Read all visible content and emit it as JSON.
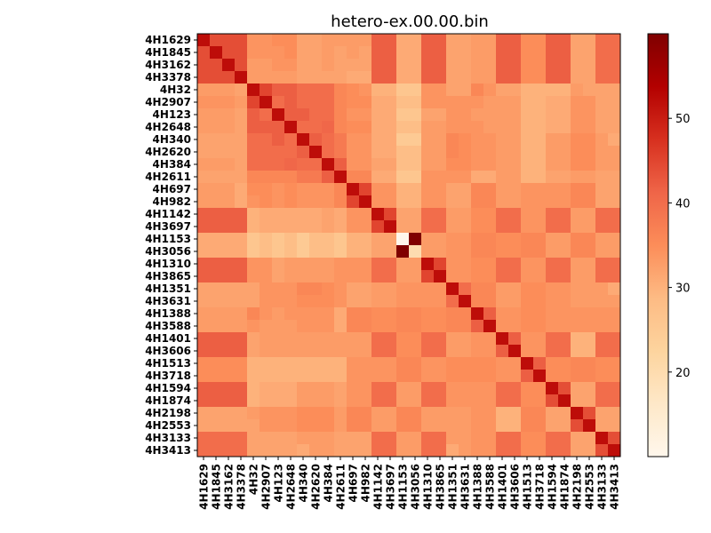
{
  "chart_data": {
    "type": "heatmap",
    "title": "hetero-ex.00.00.bin",
    "xlabel": "",
    "ylabel": "",
    "labels": [
      "4H1629",
      "4H1845",
      "4H3162",
      "4H3378",
      "4H32",
      "4H2907",
      "4H123",
      "4H2648",
      "4H340",
      "4H2620",
      "4H384",
      "4H2611",
      "4H697",
      "4H982",
      "4H1142",
      "4H3697",
      "4H1153",
      "4H3056",
      "4H1310",
      "4H3865",
      "4H1351",
      "4H3631",
      "4H1388",
      "4H3588",
      "4H1401",
      "4H3606",
      "4H1513",
      "4H3718",
      "4H1594",
      "4H1874",
      "4H2198",
      "4H2553",
      "4H3133",
      "4H3413"
    ],
    "colormap": "OrRd",
    "colormap_stops": [
      "#fff7ec",
      "#fee8c8",
      "#fdd49e",
      "#fdbb84",
      "#fc8d59",
      "#ef6548",
      "#d7301f",
      "#b30000",
      "#7f0000"
    ],
    "vmin": 10,
    "vmax": 60,
    "colorbar_ticks": [
      20,
      30,
      40,
      50
    ],
    "grid": false,
    "matrix": [
      [
        52,
        44,
        44,
        44,
        34,
        34,
        35,
        35,
        32,
        32,
        33,
        33,
        33,
        33,
        42,
        42,
        31,
        31,
        42,
        42,
        32,
        32,
        33,
        33,
        42,
        42,
        35,
        35,
        42,
        42,
        32,
        32,
        40,
        40
      ],
      [
        44,
        52,
        44,
        44,
        34,
        34,
        34,
        35,
        32,
        32,
        33,
        32,
        33,
        32,
        42,
        42,
        31,
        31,
        42,
        42,
        32,
        32,
        33,
        33,
        42,
        42,
        35,
        35,
        42,
        42,
        32,
        32,
        40,
        40
      ],
      [
        44,
        44,
        52,
        44,
        33,
        33,
        34,
        34,
        32,
        32,
        33,
        32,
        32,
        32,
        42,
        42,
        31,
        31,
        42,
        42,
        32,
        32,
        33,
        33,
        42,
        42,
        35,
        35,
        42,
        42,
        32,
        32,
        40,
        40
      ],
      [
        44,
        44,
        44,
        52,
        33,
        33,
        33,
        33,
        32,
        32,
        32,
        32,
        31,
        31,
        42,
        42,
        31,
        31,
        42,
        42,
        32,
        32,
        33,
        33,
        42,
        42,
        35,
        35,
        42,
        42,
        32,
        32,
        40,
        40
      ],
      [
        33,
        33,
        33,
        32,
        52,
        45,
        42,
        42,
        40,
        40,
        40,
        36,
        35,
        34,
        30,
        30,
        26,
        26,
        34,
        34,
        32,
        32,
        36,
        34,
        32,
        32,
        30,
        30,
        30,
        30,
        33,
        32,
        32,
        32
      ],
      [
        34,
        34,
        34,
        33,
        45,
        52,
        40,
        42,
        40,
        40,
        40,
        36,
        35,
        35,
        31,
        31,
        28,
        28,
        34,
        34,
        34,
        34,
        34,
        33,
        33,
        33,
        30,
        30,
        31,
        31,
        34,
        34,
        32,
        32
      ],
      [
        33,
        33,
        33,
        32,
        42,
        40,
        52,
        42,
        42,
        40,
        40,
        36,
        34,
        34,
        31,
        31,
        26,
        26,
        32,
        32,
        34,
        34,
        33,
        33,
        33,
        33,
        30,
        30,
        31,
        31,
        34,
        34,
        32,
        32
      ],
      [
        33,
        33,
        33,
        32,
        42,
        42,
        42,
        52,
        40,
        40,
        41,
        36,
        35,
        35,
        31,
        31,
        28,
        28,
        33,
        33,
        34,
        34,
        34,
        33,
        33,
        33,
        30,
        30,
        31,
        31,
        34,
        34,
        32,
        32
      ],
      [
        32,
        32,
        32,
        32,
        40,
        40,
        42,
        40,
        52,
        42,
        40,
        38,
        34,
        34,
        31,
        31,
        25,
        25,
        33,
        33,
        36,
        35,
        34,
        34,
        33,
        33,
        30,
        30,
        33,
        33,
        35,
        35,
        33,
        31
      ],
      [
        32,
        32,
        32,
        32,
        40,
        40,
        40,
        40,
        42,
        52,
        40,
        38,
        34,
        34,
        31,
        31,
        28,
        28,
        33,
        33,
        36,
        35,
        34,
        34,
        33,
        33,
        30,
        30,
        33,
        33,
        35,
        35,
        33,
        33
      ],
      [
        33,
        33,
        33,
        32,
        40,
        40,
        40,
        41,
        40,
        40,
        52,
        42,
        34,
        34,
        32,
        32,
        28,
        28,
        33,
        33,
        35,
        35,
        34,
        34,
        33,
        33,
        30,
        30,
        33,
        33,
        35,
        35,
        33,
        33
      ],
      [
        32,
        32,
        32,
        32,
        36,
        36,
        36,
        36,
        38,
        38,
        42,
        52,
        36,
        36,
        31,
        31,
        26,
        26,
        34,
        34,
        34,
        34,
        31,
        31,
        33,
        33,
        30,
        30,
        32,
        32,
        33,
        33,
        32,
        32
      ],
      [
        33,
        33,
        33,
        31,
        35,
        35,
        34,
        35,
        34,
        34,
        34,
        36,
        52,
        45,
        34,
        34,
        30,
        30,
        34,
        34,
        32,
        32,
        36,
        36,
        33,
        33,
        34,
        34,
        34,
        34,
        36,
        36,
        32,
        32
      ],
      [
        33,
        33,
        33,
        31,
        34,
        35,
        34,
        35,
        34,
        34,
        34,
        36,
        45,
        52,
        34,
        34,
        30,
        30,
        34,
        34,
        32,
        32,
        36,
        36,
        33,
        33,
        34,
        34,
        34,
        34,
        36,
        36,
        32,
        32
      ],
      [
        42,
        42,
        42,
        42,
        30,
        31,
        31,
        31,
        31,
        31,
        32,
        31,
        34,
        34,
        52,
        45,
        32,
        32,
        40,
        40,
        33,
        33,
        35,
        35,
        40,
        40,
        34,
        34,
        40,
        40,
        33,
        33,
        40,
        40
      ],
      [
        42,
        42,
        42,
        42,
        30,
        31,
        31,
        31,
        31,
        31,
        32,
        31,
        34,
        34,
        45,
        52,
        32,
        32,
        40,
        40,
        33,
        33,
        35,
        35,
        40,
        40,
        34,
        34,
        40,
        40,
        33,
        33,
        40,
        40
      ],
      [
        31,
        31,
        31,
        31,
        26,
        28,
        26,
        28,
        25,
        28,
        28,
        26,
        30,
        30,
        32,
        32,
        10,
        60,
        33,
        33,
        34,
        34,
        36,
        36,
        35,
        35,
        36,
        36,
        33,
        33,
        36,
        36,
        33,
        33
      ],
      [
        31,
        31,
        31,
        31,
        26,
        28,
        26,
        28,
        25,
        28,
        28,
        26,
        30,
        30,
        32,
        32,
        60,
        20,
        33,
        33,
        34,
        34,
        36,
        36,
        35,
        35,
        36,
        36,
        33,
        33,
        36,
        36,
        33,
        33
      ],
      [
        42,
        42,
        42,
        42,
        34,
        34,
        32,
        33,
        33,
        33,
        33,
        34,
        34,
        34,
        40,
        40,
        33,
        33,
        52,
        45,
        34,
        34,
        35,
        35,
        40,
        40,
        34,
        34,
        40,
        40,
        33,
        33,
        40,
        40
      ],
      [
        42,
        42,
        42,
        42,
        34,
        34,
        32,
        33,
        33,
        33,
        33,
        34,
        34,
        34,
        40,
        40,
        33,
        33,
        45,
        52,
        34,
        34,
        35,
        35,
        40,
        40,
        34,
        34,
        40,
        40,
        33,
        33,
        40,
        40
      ],
      [
        32,
        32,
        32,
        32,
        32,
        34,
        34,
        34,
        36,
        36,
        35,
        34,
        32,
        32,
        33,
        33,
        34,
        34,
        34,
        34,
        52,
        40,
        36,
        36,
        33,
        33,
        35,
        35,
        34,
        34,
        33,
        33,
        33,
        31
      ],
      [
        32,
        32,
        32,
        32,
        32,
        34,
        34,
        34,
        35,
        35,
        35,
        34,
        32,
        32,
        33,
        33,
        34,
        34,
        34,
        34,
        40,
        52,
        36,
        36,
        33,
        33,
        35,
        35,
        34,
        34,
        33,
        33,
        33,
        33
      ],
      [
        33,
        33,
        33,
        33,
        36,
        34,
        33,
        34,
        34,
        34,
        34,
        31,
        36,
        36,
        35,
        35,
        36,
        36,
        35,
        35,
        36,
        36,
        52,
        42,
        34,
        34,
        35,
        35,
        34,
        34,
        34,
        34,
        34,
        34
      ],
      [
        33,
        33,
        33,
        33,
        34,
        33,
        33,
        33,
        34,
        34,
        34,
        31,
        36,
        36,
        35,
        35,
        36,
        36,
        35,
        35,
        36,
        36,
        42,
        52,
        34,
        34,
        35,
        35,
        34,
        34,
        34,
        34,
        34,
        34
      ],
      [
        42,
        42,
        42,
        42,
        32,
        33,
        33,
        33,
        33,
        33,
        33,
        33,
        33,
        33,
        40,
        40,
        35,
        35,
        40,
        40,
        33,
        33,
        34,
        34,
        52,
        42,
        34,
        34,
        40,
        40,
        30,
        30,
        40,
        40
      ],
      [
        42,
        42,
        42,
        42,
        32,
        33,
        33,
        33,
        33,
        33,
        33,
        33,
        33,
        33,
        40,
        40,
        35,
        35,
        40,
        40,
        33,
        33,
        34,
        34,
        42,
        52,
        34,
        34,
        40,
        40,
        30,
        30,
        40,
        40
      ],
      [
        35,
        35,
        35,
        35,
        30,
        30,
        30,
        30,
        30,
        30,
        30,
        30,
        34,
        34,
        34,
        34,
        36,
        36,
        34,
        34,
        35,
        35,
        35,
        35,
        34,
        34,
        52,
        42,
        35,
        35,
        36,
        36,
        35,
        35
      ],
      [
        35,
        35,
        35,
        35,
        30,
        30,
        30,
        30,
        30,
        30,
        30,
        30,
        34,
        34,
        34,
        34,
        36,
        36,
        34,
        34,
        35,
        35,
        35,
        35,
        34,
        34,
        42,
        52,
        35,
        35,
        36,
        36,
        35,
        35
      ],
      [
        42,
        42,
        42,
        42,
        30,
        31,
        31,
        31,
        33,
        33,
        33,
        32,
        34,
        34,
        40,
        40,
        33,
        33,
        40,
        40,
        34,
        34,
        34,
        34,
        40,
        40,
        35,
        35,
        52,
        44,
        32,
        32,
        40,
        40
      ],
      [
        42,
        42,
        42,
        42,
        30,
        31,
        31,
        31,
        33,
        33,
        33,
        32,
        34,
        34,
        40,
        40,
        33,
        33,
        40,
        40,
        34,
        34,
        34,
        34,
        40,
        40,
        35,
        35,
        44,
        52,
        32,
        32,
        40,
        40
      ],
      [
        32,
        32,
        32,
        32,
        33,
        34,
        34,
        34,
        35,
        35,
        35,
        33,
        36,
        36,
        33,
        33,
        36,
        36,
        33,
        33,
        33,
        33,
        34,
        34,
        30,
        30,
        36,
        36,
        32,
        32,
        52,
        44,
        32,
        32
      ],
      [
        32,
        32,
        32,
        32,
        32,
        34,
        34,
        34,
        35,
        35,
        35,
        33,
        36,
        36,
        33,
        33,
        36,
        36,
        33,
        33,
        33,
        33,
        34,
        34,
        30,
        30,
        36,
        36,
        32,
        32,
        44,
        52,
        32,
        32
      ],
      [
        40,
        40,
        40,
        40,
        32,
        32,
        32,
        32,
        33,
        33,
        33,
        32,
        32,
        32,
        40,
        40,
        33,
        33,
        40,
        40,
        33,
        33,
        34,
        34,
        40,
        40,
        35,
        35,
        40,
        40,
        32,
        32,
        52,
        44
      ],
      [
        40,
        40,
        40,
        40,
        32,
        32,
        32,
        32,
        31,
        33,
        33,
        32,
        32,
        32,
        40,
        40,
        33,
        33,
        40,
        40,
        31,
        33,
        34,
        34,
        40,
        40,
        35,
        35,
        40,
        40,
        32,
        32,
        44,
        52
      ]
    ]
  }
}
